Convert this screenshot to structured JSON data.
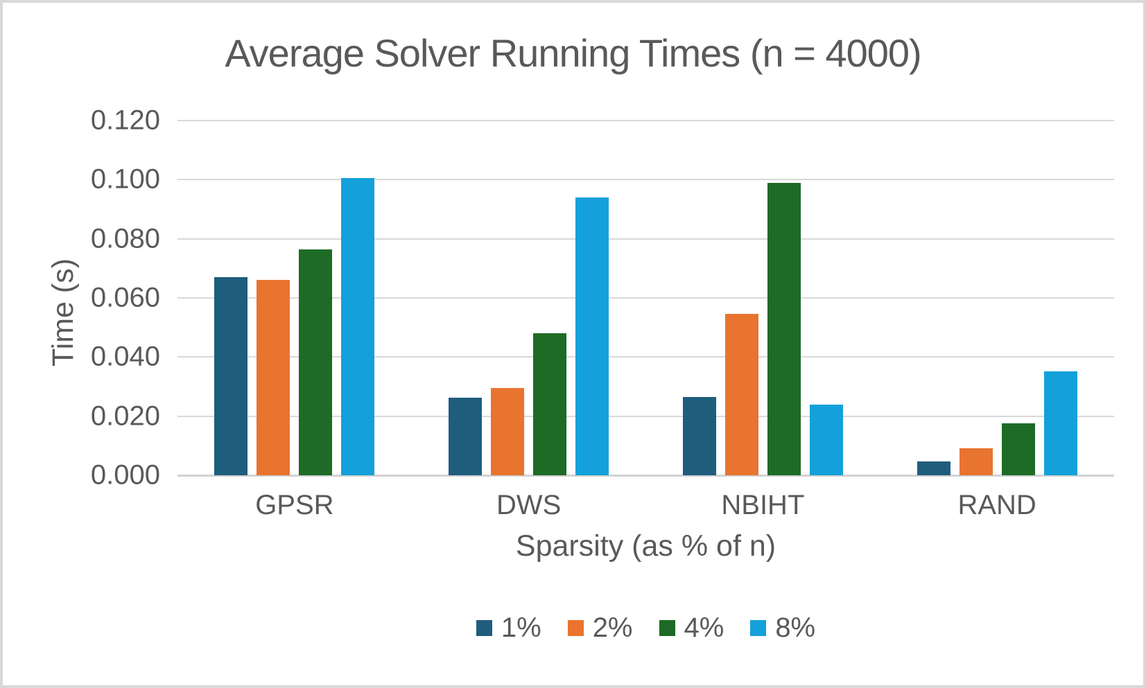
{
  "chart_data": {
    "type": "bar",
    "title": "Average Solver Running Times (n = 4000)",
    "xlabel": "Sparsity (as % of n)",
    "ylabel": "Time (s)",
    "categories": [
      "GPSR",
      "DWS",
      "NBIHT",
      "RAND"
    ],
    "series": [
      {
        "name": "1%",
        "color": "#1F5D7D",
        "values": [
          0.067,
          0.0263,
          0.0265,
          0.0046
        ]
      },
      {
        "name": "2%",
        "color": "#E87430",
        "values": [
          0.066,
          0.0295,
          0.0545,
          0.0092
        ]
      },
      {
        "name": "4%",
        "color": "#1D6B26",
        "values": [
          0.0765,
          0.048,
          0.099,
          0.0176
        ]
      },
      {
        "name": "8%",
        "color": "#14A0DA",
        "values": [
          0.1005,
          0.094,
          0.0238,
          0.0352
        ]
      }
    ],
    "ylim": [
      0,
      0.12
    ],
    "ytick_step": 0.02,
    "ytick_labels": [
      "0.120",
      "0.100",
      "0.080",
      "0.060",
      "0.040",
      "0.020",
      "0.000"
    ],
    "grid": "horizontal",
    "legend_position": "bottom",
    "text_color": "#595959",
    "gridline_color": "#D9D9D9"
  }
}
